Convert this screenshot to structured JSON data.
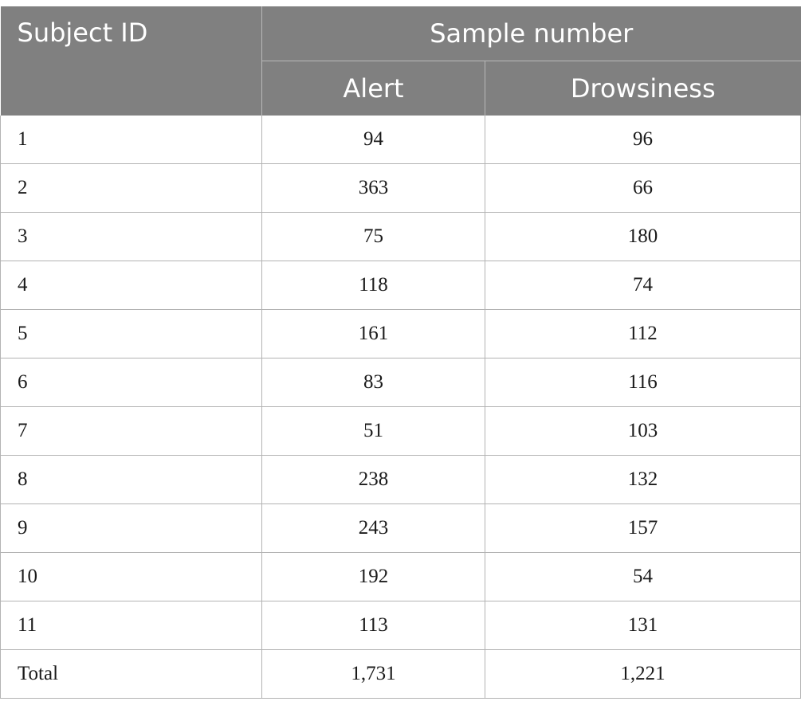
{
  "table": {
    "header": {
      "subject_id": "Subject ID",
      "sample_number": "Sample number",
      "alert": "Alert",
      "drowsiness": "Drowsiness"
    },
    "rows": [
      {
        "id": "1",
        "alert": "94",
        "drowsiness": "96"
      },
      {
        "id": "2",
        "alert": "363",
        "drowsiness": "66"
      },
      {
        "id": "3",
        "alert": "75",
        "drowsiness": "180"
      },
      {
        "id": "4",
        "alert": "118",
        "drowsiness": "74"
      },
      {
        "id": "5",
        "alert": "161",
        "drowsiness": "112"
      },
      {
        "id": "6",
        "alert": "83",
        "drowsiness": "116"
      },
      {
        "id": "7",
        "alert": "51",
        "drowsiness": "103"
      },
      {
        "id": "8",
        "alert": "238",
        "drowsiness": "132"
      },
      {
        "id": "9",
        "alert": "243",
        "drowsiness": "157"
      },
      {
        "id": "10",
        "alert": "192",
        "drowsiness": "54"
      },
      {
        "id": "11",
        "alert": "113",
        "drowsiness": "131"
      },
      {
        "id": "Total",
        "alert": "1,731",
        "drowsiness": "1,221"
      }
    ]
  },
  "colors": {
    "header_background": "#808080",
    "header_text": "#ffffff",
    "grid_line": "#b3b3b3"
  }
}
